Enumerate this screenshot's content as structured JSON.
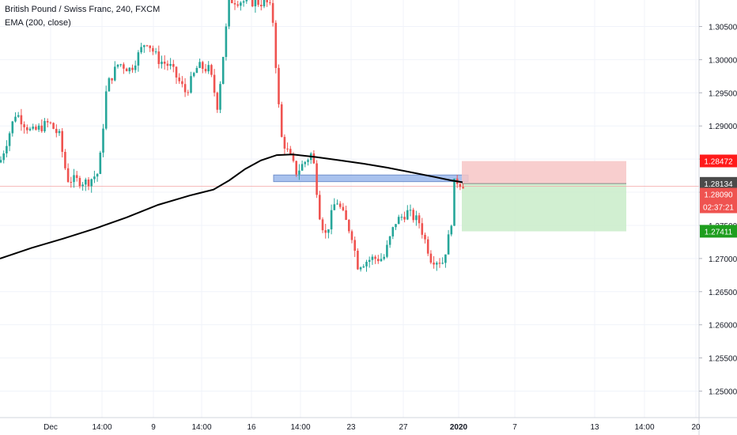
{
  "header": {
    "title": "British Pound / Swiss Franc, 240, FXCM",
    "indicator": "EMA (200, close)"
  },
  "colors": {
    "up": "#26a69a",
    "down": "#ef5350",
    "ema": "#000000",
    "grid": "#f0f3fa",
    "stop_zone": "#f7c5c5",
    "target_zone": "#c9ecc9",
    "support_zone": "#9bb8ec",
    "stop_badge": "#ff1a1a",
    "target_badge": "#1e9e1e",
    "last_badge": "#4a4a4a",
    "current_badge": "#ef5350"
  },
  "chart_data": {
    "type": "candlestick",
    "symbol": "GBPCHF",
    "timeframe": "240",
    "ylim": [
      1.246,
      1.309
    ],
    "x_ticks": [
      "Dec",
      "14:00",
      "9",
      "14:00",
      "16",
      "14:00",
      "23",
      "27",
      "2020",
      "7",
      "13",
      "14:00",
      "20"
    ],
    "y_ticks": [
      "1.30500",
      "1.30000",
      "1.29500",
      "1.29000",
      "1.28500",
      "1.28000",
      "1.27500",
      "1.27000",
      "1.26500",
      "1.26000",
      "1.25500",
      "1.25000"
    ],
    "y_tick_values": [
      1.305,
      1.3,
      1.295,
      1.29,
      1.285,
      1.28,
      1.275,
      1.27,
      1.265,
      1.26,
      1.255,
      1.25
    ],
    "ema_200": [
      [
        0,
        1.27
      ],
      [
        40,
        1.2716
      ],
      [
        80,
        1.273
      ],
      [
        120,
        1.2745
      ],
      [
        160,
        1.2762
      ],
      [
        200,
        1.2781
      ],
      [
        240,
        1.2795
      ],
      [
        270,
        1.2804
      ],
      [
        290,
        1.2818
      ],
      [
        310,
        1.2835
      ],
      [
        330,
        1.2848
      ],
      [
        350,
        1.2856
      ],
      [
        370,
        1.2857
      ],
      [
        400,
        1.2853
      ],
      [
        430,
        1.2848
      ],
      [
        460,
        1.2843
      ],
      [
        490,
        1.2837
      ],
      [
        520,
        1.283
      ],
      [
        550,
        1.2823
      ],
      [
        570,
        1.2818
      ],
      [
        580,
        1.2816
      ],
      [
        585,
        1.2815
      ]
    ],
    "annotations": {
      "stop_level": "1.28472",
      "last_price": "1.28134",
      "current_price": "1.28090",
      "countdown": "02:37:21",
      "target_level": "1.27411",
      "position_entry": 1.2813,
      "position_stop": 1.2847,
      "position_target": 1.2741,
      "support_zone_top": 1.2826,
      "support_zone_bottom": 1.2816
    },
    "grid": true,
    "legend": "top-left"
  }
}
